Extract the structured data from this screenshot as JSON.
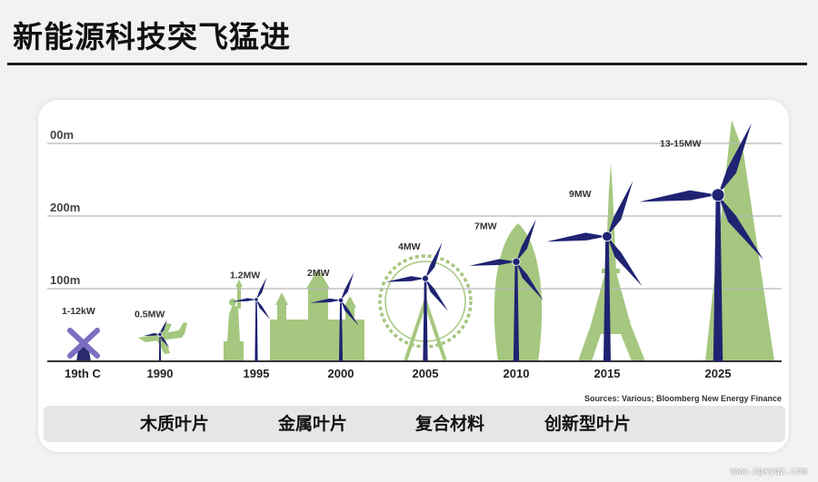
{
  "page": {
    "title": "新能源科技突飞猛进",
    "watermark": "www.zgsyqz.com"
  },
  "chart_data": {
    "type": "bar",
    "title": "",
    "xlabel": "",
    "ylabel": "",
    "ylim": [
      0,
      300
    ],
    "grid": true,
    "y_ticks": [
      {
        "value": 100,
        "label": "100m"
      },
      {
        "value": 200,
        "label": "200m"
      },
      {
        "value": 300,
        "label": "00m"
      }
    ],
    "categories": [
      "19th C",
      "1990",
      "1995",
      "2000",
      "2005",
      "2010",
      "2015",
      "2025"
    ],
    "power_labels": [
      "1-12kW",
      "0.5MW",
      "1.2MW",
      "2MW",
      "4MW",
      "7MW",
      "9MW",
      "13-15MW"
    ],
    "hub_heights": [
      15,
      37,
      85,
      84,
      114,
      137,
      172,
      229
    ],
    "rotor_radius": [
      11,
      18,
      27,
      34,
      44,
      52,
      67,
      87
    ],
    "landmarks": [
      "",
      "airplane",
      "statue-of-liberty",
      "parliament",
      "ferris-wheel",
      "gherkin",
      "eiffel-tower",
      "shard"
    ],
    "source": "Sources: Various; Bloomberg New Energy Finance",
    "blade_types": [
      "木质叶片",
      "金属叶片",
      "复合材料",
      "创新型叶片"
    ],
    "colors": {
      "turbine": "#1f2372",
      "landmark": "#a5c77f",
      "windmill": "#7a6fc0",
      "grid": "#b8b8b8",
      "baseline": "#333333"
    }
  }
}
